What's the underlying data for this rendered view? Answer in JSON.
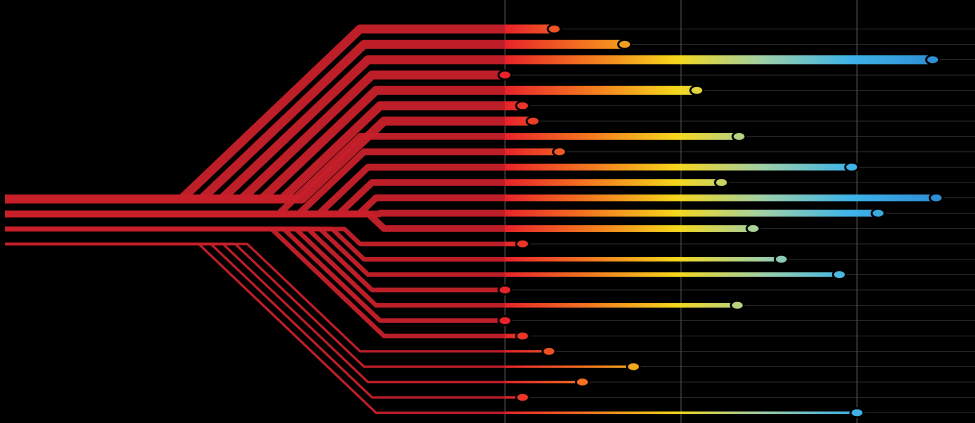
{
  "chart_data": {
    "type": "line",
    "title": "",
    "xlabel": "",
    "ylabel": "",
    "grid": true,
    "gradient_colors": [
      "#e8232a",
      "#f47a20",
      "#f5d81c",
      "#9fd0a8",
      "#3fb5e8",
      "#2f8fd6"
    ],
    "branch_color": "#c8202a",
    "background": "#000000",
    "series": [
      {
        "values": [
          0.28
        ]
      },
      {
        "values": [
          0.68
        ]
      },
      {
        "values": [
          2.43
        ]
      },
      {
        "values": [
          0.0
        ]
      },
      {
        "values": [
          1.09
        ]
      },
      {
        "values": [
          0.1
        ]
      },
      {
        "values": [
          0.16
        ]
      },
      {
        "values": [
          1.33
        ]
      },
      {
        "values": [
          0.31
        ]
      },
      {
        "values": [
          1.97
        ]
      },
      {
        "values": [
          1.23
        ]
      },
      {
        "values": [
          2.45
        ]
      },
      {
        "values": [
          2.12
        ]
      },
      {
        "values": [
          1.41
        ]
      },
      {
        "values": [
          0.1
        ]
      },
      {
        "values": [
          1.57
        ]
      },
      {
        "values": [
          1.9
        ]
      },
      {
        "values": [
          0.0
        ]
      },
      {
        "values": [
          1.32
        ]
      },
      {
        "values": [
          0.0
        ]
      },
      {
        "values": [
          0.1
        ]
      },
      {
        "values": [
          0.25
        ]
      },
      {
        "values": [
          0.73
        ]
      },
      {
        "values": [
          0.44
        ]
      },
      {
        "values": [
          0.1
        ]
      },
      {
        "values": [
          2.0
        ]
      }
    ]
  }
}
